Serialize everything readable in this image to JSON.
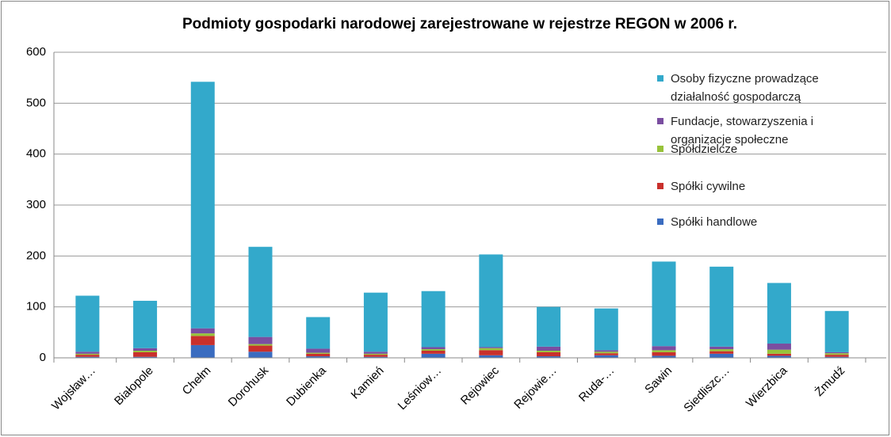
{
  "chart_data": {
    "type": "bar",
    "stacked": true,
    "title": "Podmioty gospodarki narodowej zarejestrowane w rejestrze REGON w 2006 r.",
    "categories": [
      "Wojsław…",
      "Białopole",
      "Chełm",
      "Dorohusk",
      "Dubienka",
      "Kamień",
      "Leśniow…",
      "Rejowiec",
      "Rejowie…",
      "Ruda-…",
      "Sawin",
      "Siedliszc…",
      "Wierzbica",
      "Żmudź"
    ],
    "series": [
      {
        "name": "Spółki handlowe",
        "color": "#3a6cc0",
        "values": [
          2,
          2,
          25,
          12,
          3,
          2,
          8,
          5,
          3,
          5,
          4,
          8,
          4,
          2
        ]
      },
      {
        "name": "Spółki cywilne",
        "color": "#c9302c",
        "values": [
          4,
          9,
          18,
          12,
          5,
          4,
          6,
          10,
          8,
          4,
          7,
          5,
          4,
          4
        ]
      },
      {
        "name": "Spółdzielcze",
        "color": "#98c33a",
        "values": [
          2,
          3,
          5,
          3,
          2,
          2,
          3,
          4,
          3,
          3,
          4,
          4,
          8,
          3
        ]
      },
      {
        "name": "Fundacje, stowarzyszenia i organizacje społeczne",
        "color": "#7a4ea0",
        "values": [
          4,
          5,
          10,
          14,
          8,
          4,
          4,
          2,
          8,
          3,
          8,
          5,
          12,
          2
        ]
      },
      {
        "name": "Osoby fizyczne prowadzące działalność gospodarczą",
        "color": "#33a9cb",
        "values": [
          110,
          93,
          484,
          177,
          62,
          116,
          110,
          182,
          78,
          82,
          166,
          157,
          119,
          81
        ]
      }
    ],
    "ylim": [
      0,
      600
    ],
    "yticks": [
      0,
      100,
      200,
      300,
      400,
      500,
      600
    ],
    "grid": true,
    "legend": "right"
  }
}
